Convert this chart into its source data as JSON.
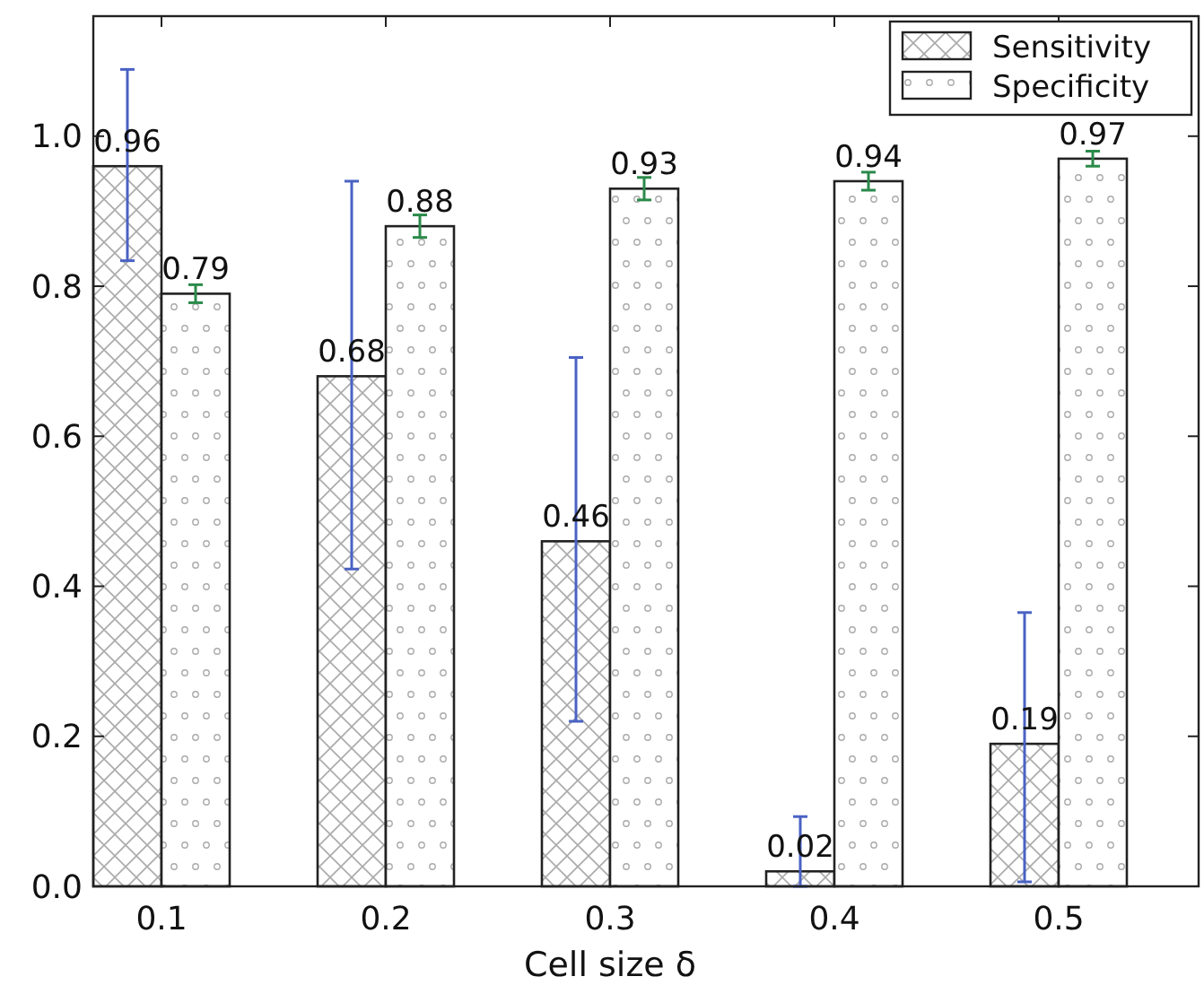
{
  "chart_data": {
    "type": "bar",
    "xlabel": "Cell size δ",
    "categories": [
      "0.1",
      "0.2",
      "0.3",
      "0.4",
      "0.5"
    ],
    "series": [
      {
        "name": "Sensitivity",
        "color": "#222222",
        "values": [
          0.96,
          0.68,
          0.46,
          0.02,
          0.19
        ],
        "errors": [
          [
            0.834,
            1.089
          ],
          [
            0.423,
            0.94
          ],
          [
            0.22,
            0.705
          ],
          [
            0,
            0.093
          ],
          [
            0.006,
            0.365
          ]
        ]
      },
      {
        "name": "Specificity",
        "color": "#222222",
        "values": [
          0.79,
          0.88,
          0.93,
          0.94,
          0.97
        ],
        "errors": [
          0.012,
          0.015,
          0.015,
          0.012,
          0.01
        ]
      }
    ],
    "ylim": [
      0,
      1.16
    ],
    "yticks": [
      {
        "value": 0,
        "label": "0.0"
      },
      0.2,
      0.4,
      0.6,
      0.8,
      {
        "value": 1,
        "label": "1.0"
      }
    ],
    "data_labels": true,
    "legend": "top right",
    "grid": false
  }
}
